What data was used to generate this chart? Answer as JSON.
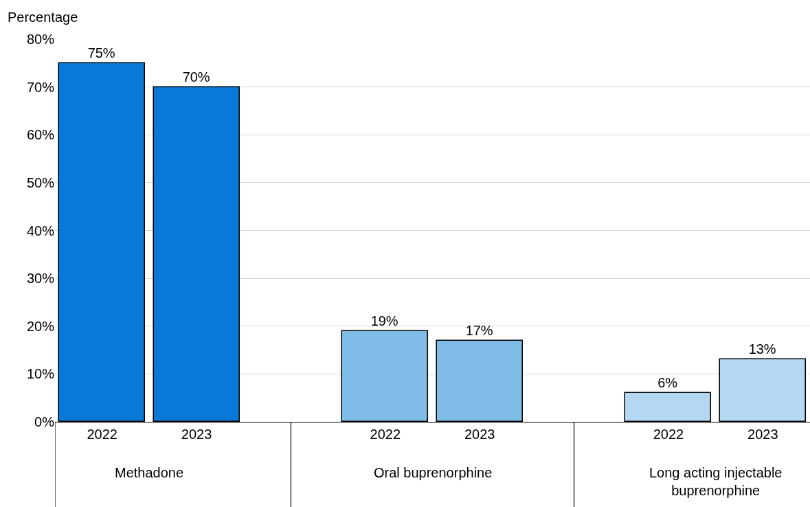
{
  "chart_data": {
    "type": "bar",
    "ylabel": "Percentage",
    "categories": [
      "2022",
      "2023",
      "2022",
      "2023",
      "2022",
      "2023"
    ],
    "values": [
      75,
      70,
      19,
      17,
      6,
      13
    ],
    "colors": [
      "#0a78d6",
      "#0a78d6",
      "#80bce8",
      "#80bce8",
      "#b5d8f2",
      "#b5d8f2"
    ],
    "value_labels": [
      "75%",
      "70%",
      "19%",
      "17%",
      "6%",
      "13%"
    ],
    "annotations": [
      "Methadone",
      "Oral buprenorphine",
      "Long acting injectable buprenorphine"
    ],
    "ylim": [
      0,
      80
    ],
    "yticks": [
      {
        "value": 0,
        "label": "0%"
      },
      {
        "value": 10,
        "label": "10%"
      },
      {
        "value": 20,
        "label": "20%"
      },
      {
        "value": 30,
        "label": "30%"
      },
      {
        "value": 40,
        "label": "40%"
      },
      {
        "value": 50,
        "label": "50%"
      },
      {
        "value": 60,
        "label": "60%"
      },
      {
        "value": 70,
        "label": "70%"
      },
      {
        "value": 80,
        "label": "80%"
      }
    ],
    "grid": "y"
  }
}
